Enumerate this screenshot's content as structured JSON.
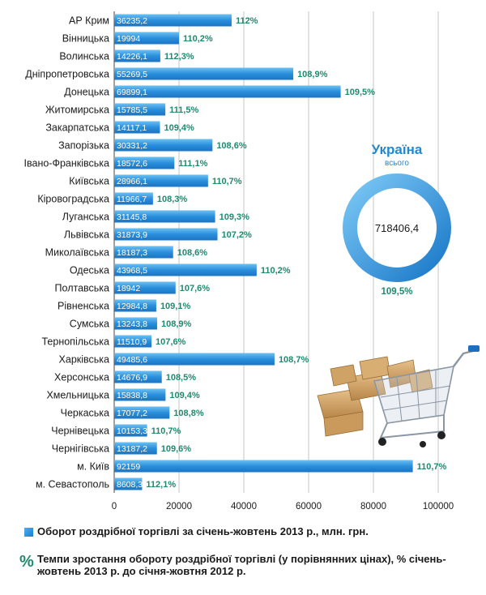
{
  "chart_data": {
    "type": "bar",
    "orientation": "horizontal",
    "categories": [
      "АР Крим",
      "Вінницька",
      "Волинська",
      "Дніпропетровська",
      "Донецька",
      "Житомирська",
      "Закарпатська",
      "Запорізька",
      "Івано-Франківська",
      "Київська",
      "Кіровоградська",
      "Луганська",
      "Львівська",
      "Миколаївська",
      "Одеська",
      "Полтавська",
      "Рівненська",
      "Сумська",
      "Тернопільська",
      "Харківська",
      "Херсонська",
      "Хмельницька",
      "Черкаська",
      "Чернівецька",
      "Чернігівська",
      "м. Київ",
      "м. Севастополь"
    ],
    "value_labels": [
      "36235,2",
      "19994",
      "14226,1",
      "55269,5",
      "69899,1",
      "15785,5",
      "14117,1",
      "30331,2",
      "18572,6",
      "28966,1",
      "11966,7",
      "31145,8",
      "31873,9",
      "18187,3",
      "43968,5",
      "18942",
      "12984,8",
      "13243,8",
      "11510,9",
      "49485,6",
      "14676,9",
      "15838,8",
      "17077,2",
      "10153,3",
      "13187,2",
      "92159",
      "8608,3"
    ],
    "values": [
      36235.2,
      19994,
      14226.1,
      55269.5,
      69899.1,
      15785.5,
      14117.1,
      30331.2,
      18572.6,
      28966.1,
      11966.7,
      31145.8,
      31873.9,
      18187.3,
      43968.5,
      18942,
      12984.8,
      13243.8,
      11510.9,
      49485.6,
      14676.9,
      15838.8,
      17077.2,
      10153.3,
      13187.2,
      92159,
      8608.3
    ],
    "growth_labels": [
      "112%",
      "110,2%",
      "112,3%",
      "108,9%",
      "109,5%",
      "111,5%",
      "109,4%",
      "108,6%",
      "111,1%",
      "110,7%",
      "108,3%",
      "109,3%",
      "107,2%",
      "108,6%",
      "110,2%",
      "107,6%",
      "109,1%",
      "108,9%",
      "107,6%",
      "108,7%",
      "108,5%",
      "109,4%",
      "108,8%",
      "110,7%",
      "109,6%",
      "110,7%",
      "112,1%"
    ],
    "x_ticks": [
      "0",
      "20000",
      "40000",
      "60000",
      "80000",
      "100000"
    ],
    "xlim": [
      0,
      100000
    ],
    "grid": "vertical",
    "bar_color": "#2a8fdc",
    "pct_color": "#1f8a6e"
  },
  "summary": {
    "title": "Україна",
    "subtitle": "всього",
    "total_value": "718406,4",
    "total_growth": "109,5%",
    "title_color": "#1f8ad0"
  },
  "legend": {
    "volume_text": "Оборот роздрібної торгівлі за січень-жовтень 2013 р., млн. грн.",
    "growth_icon": "%",
    "growth_text": "Темпи зростання обороту  роздрібної торгівлі (у порівнянних цінах), % січень-жовтень 2013 р. до січня-жовтня 2012 р."
  },
  "decoration": {
    "illustration": "shopping-cart-with-boxes-icon"
  }
}
